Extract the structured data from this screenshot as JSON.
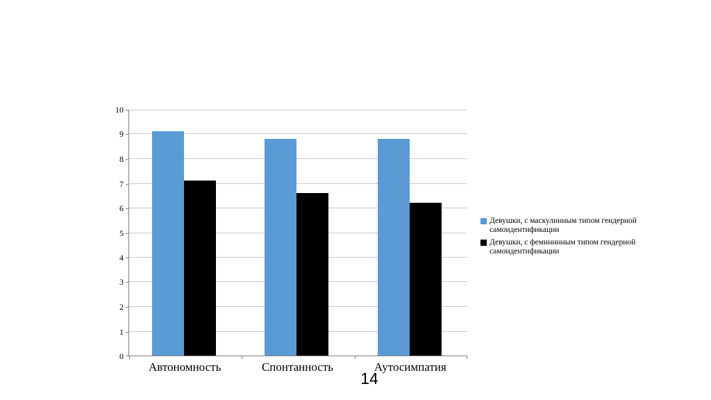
{
  "page": {
    "number": "14"
  },
  "chart_data": {
    "type": "bar",
    "title": "",
    "categories": [
      "Автономность",
      "Спонтанность",
      "Аутосимпатия"
    ],
    "series": [
      {
        "name": "Девушки, с маскулинным типом гендерной самоидентификации",
        "color": "#5b9bd5",
        "values": [
          9.1,
          8.8,
          8.8
        ]
      },
      {
        "name": "Девушки, с фемининным типом гендерной самоидентификации",
        "color": "#000000",
        "values": [
          7.1,
          6.6,
          6.2
        ]
      }
    ],
    "xlabel": "",
    "ylabel": "",
    "ylim": [
      0,
      10
    ],
    "ytick_step": 1,
    "grid": true,
    "legend_position": "right",
    "colors": {
      "gridline": "#c9c9c9",
      "axis": "#7f7f7f",
      "background": "#ffffff"
    }
  }
}
